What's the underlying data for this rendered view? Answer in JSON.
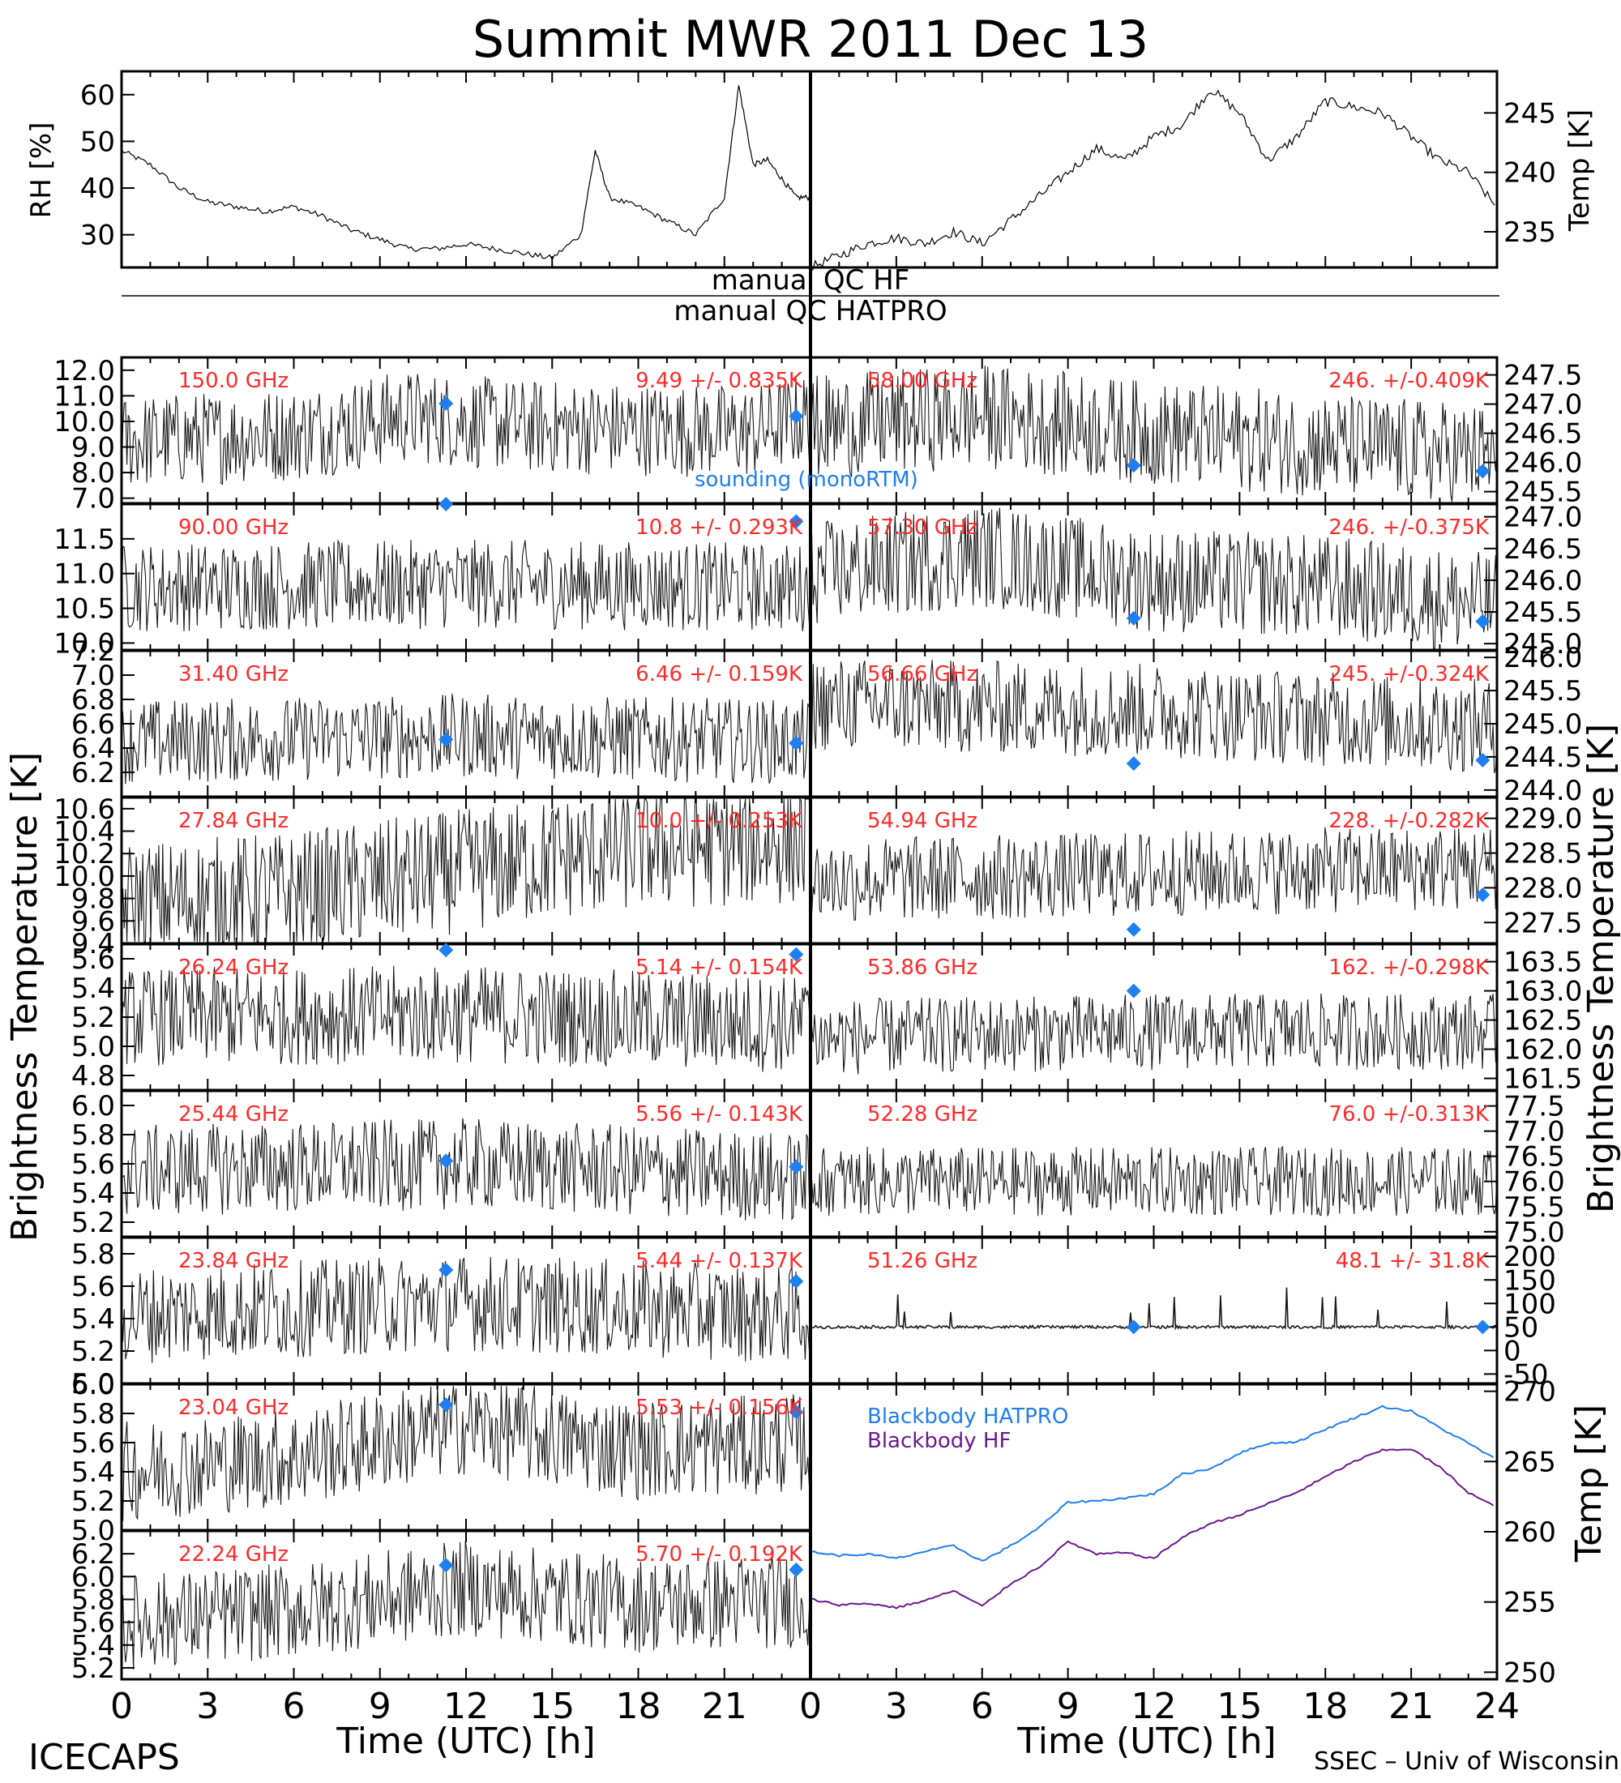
{
  "title": "Summit MWR 2011 Dec 13",
  "footer_left": "ICECAPS",
  "footer_right": "SSEC – Univ of Wisconsin",
  "xlabel": "Time (UTC) [h]",
  "qc": {
    "hf": "manual QC HF",
    "hatpro": "manual QC HATPRO"
  },
  "left_axis_label": "Brightness Temperature [K]",
  "right_axis_label": "Brightness Temperature [K]",
  "legend_sounding": "sounding (monoRTM)",
  "colors": {
    "sounding": "#1e7ff0",
    "annotation": "#ff2a2a",
    "bb_hatpro": "#1e7ff0",
    "bb_hf": "#6a1a8f"
  },
  "chart_data": [
    {
      "type": "line",
      "panel": "met-rh",
      "xlim": [
        0,
        24
      ],
      "ylim": [
        23,
        65
      ],
      "ylabel": "RH [%]",
      "yticks": [
        30,
        40,
        50,
        60
      ],
      "x": [
        0,
        1,
        2,
        3,
        4,
        5,
        6,
        7,
        8,
        9,
        10,
        11,
        12,
        13,
        14,
        15,
        16,
        16.5,
        17,
        18,
        19,
        20,
        21,
        21.5,
        22,
        22.5,
        23,
        23.5,
        24
      ],
      "values": [
        48,
        45,
        40,
        37,
        36,
        35,
        36,
        34,
        31,
        29,
        27,
        27,
        28,
        27,
        26,
        25,
        30,
        48,
        38,
        36,
        33,
        30,
        38,
        62,
        45,
        46,
        42,
        38,
        38
      ]
    },
    {
      "type": "line",
      "panel": "met-temp",
      "xlim": [
        0,
        24
      ],
      "ylim": [
        232,
        248.5
      ],
      "ylabel": "Temp [K]",
      "yticks": [
        235,
        240,
        245
      ],
      "x": [
        0,
        1,
        2,
        3,
        4,
        5,
        6,
        7,
        8,
        9,
        10,
        11,
        12,
        13,
        14,
        15,
        16,
        17,
        18,
        19,
        20,
        21,
        22,
        23,
        24
      ],
      "values": [
        232,
        233,
        234,
        234.5,
        234,
        235,
        234,
        236,
        238,
        240,
        242,
        241,
        243,
        244,
        247,
        245,
        241,
        243,
        246,
        245.5,
        245,
        243,
        241,
        240,
        237
      ]
    },
    {
      "type": "scatter",
      "side": "left",
      "freq_label": "150.0 GHz",
      "stats": "9.49 +/- 0.835K",
      "mean": 9.49,
      "sd": 0.835,
      "ylim": [
        6.8,
        12.5
      ],
      "yticks": [
        7,
        8,
        9,
        10,
        11,
        12
      ],
      "trend": [
        [
          0,
          9.2
        ],
        [
          6,
          9.5
        ],
        [
          10,
          10.2
        ],
        [
          14,
          9.8
        ],
        [
          18,
          9.7
        ],
        [
          22,
          9.6
        ],
        [
          24,
          10.2
        ]
      ],
      "sounding": [
        [
          11.3,
          10.7
        ],
        [
          23.5,
          10.2
        ]
      ]
    },
    {
      "type": "scatter",
      "side": "left",
      "freq_label": "90.00 GHz",
      "stats": "10.8 +/- 0.293K",
      "mean": 10.8,
      "sd": 0.293,
      "ylim": [
        9.9,
        12.0
      ],
      "yticks": [
        10.0,
        10.5,
        11.0,
        11.5
      ],
      "trend": [
        [
          0,
          10.8
        ],
        [
          12,
          10.85
        ],
        [
          24,
          10.8
        ]
      ],
      "sounding": [
        [
          11.3,
          12.0
        ],
        [
          23.5,
          11.75
        ]
      ]
    },
    {
      "type": "scatter",
      "side": "left",
      "freq_label": "31.40 GHz",
      "stats": "6.46 +/- 0.159K",
      "mean": 6.46,
      "sd": 0.159,
      "ylim": [
        6.0,
        7.2
      ],
      "yticks": [
        6.2,
        6.4,
        6.6,
        6.8,
        7.0,
        7.2
      ],
      "trend": [
        [
          0,
          6.45
        ],
        [
          12,
          6.5
        ],
        [
          24,
          6.45
        ]
      ],
      "sounding": [
        [
          11.3,
          6.47
        ],
        [
          23.5,
          6.44
        ]
      ]
    },
    {
      "type": "scatter",
      "side": "left",
      "freq_label": "27.84 GHz",
      "stats": "10.0 +/- 0.253K",
      "mean": 10.0,
      "sd": 0.253,
      "ylim": [
        9.4,
        10.7
      ],
      "yticks": [
        9.4,
        9.6,
        9.8,
        10.0,
        10.2,
        10.4,
        10.6
      ],
      "trend": [
        [
          0,
          9.75
        ],
        [
          6,
          9.85
        ],
        [
          12,
          10.05
        ],
        [
          18,
          10.25
        ],
        [
          24,
          10.3
        ]
      ],
      "sounding": []
    },
    {
      "type": "scatter",
      "side": "left",
      "freq_label": "26.24 GHz",
      "stats": "5.14 +/- 0.154K",
      "mean": 5.14,
      "sd": 0.154,
      "ylim": [
        4.7,
        5.7
      ],
      "yticks": [
        4.8,
        5.0,
        5.2,
        5.4,
        5.6
      ],
      "trend": [
        [
          0,
          5.2
        ],
        [
          12,
          5.22
        ],
        [
          24,
          5.15
        ]
      ],
      "sounding": [
        [
          11.3,
          5.66
        ],
        [
          23.5,
          5.63
        ]
      ]
    },
    {
      "type": "scatter",
      "side": "left",
      "freq_label": "25.44 GHz",
      "stats": "5.56 +/- 0.143K",
      "mean": 5.56,
      "sd": 0.143,
      "ylim": [
        5.1,
        6.1
      ],
      "yticks": [
        5.2,
        5.4,
        5.6,
        5.8,
        6.0
      ],
      "trend": [
        [
          0,
          5.55
        ],
        [
          12,
          5.6
        ],
        [
          24,
          5.5
        ]
      ],
      "sounding": [
        [
          11.3,
          5.62
        ],
        [
          23.5,
          5.58
        ]
      ]
    },
    {
      "type": "scatter",
      "side": "left",
      "freq_label": "23.84 GHz",
      "stats": "5.44 +/- 0.137K",
      "mean": 5.44,
      "sd": 0.137,
      "ylim": [
        5.0,
        5.9
      ],
      "yticks": [
        5.0,
        5.2,
        5.4,
        5.6,
        5.8
      ],
      "trend": [
        [
          0,
          5.42
        ],
        [
          12,
          5.5
        ],
        [
          24,
          5.42
        ]
      ],
      "sounding": [
        [
          11.3,
          5.7
        ],
        [
          23.5,
          5.63
        ]
      ]
    },
    {
      "type": "scatter",
      "side": "left",
      "freq_label": "23.04 GHz",
      "stats": "5.53 +/- 0.156K",
      "mean": 5.53,
      "sd": 0.156,
      "ylim": [
        5.0,
        6.0
      ],
      "yticks": [
        5.0,
        5.2,
        5.4,
        5.6,
        5.8,
        6.0
      ],
      "trend": [
        [
          0,
          5.4
        ],
        [
          6,
          5.5
        ],
        [
          12,
          5.72
        ],
        [
          18,
          5.55
        ],
        [
          24,
          5.6
        ]
      ],
      "sounding": [
        [
          11.3,
          5.86
        ],
        [
          23.5,
          5.81
        ]
      ]
    },
    {
      "type": "scatter",
      "side": "left",
      "freq_label": "22.24 GHz",
      "stats": "5.70 +/- 0.192K",
      "mean": 5.7,
      "sd": 0.192,
      "ylim": [
        5.1,
        6.4
      ],
      "yticks": [
        5.2,
        5.4,
        5.6,
        5.8,
        6.0,
        6.2
      ],
      "trend": [
        [
          0,
          5.6
        ],
        [
          6,
          5.7
        ],
        [
          12,
          5.9
        ],
        [
          18,
          5.75
        ],
        [
          24,
          5.8
        ]
      ],
      "sounding": [
        [
          11.3,
          6.1
        ],
        [
          23.5,
          6.06
        ]
      ]
    },
    {
      "type": "scatter",
      "side": "right",
      "freq_label": "58.00 GHz",
      "stats": "246. +/-0.409K",
      "mean": 246.5,
      "sd": 0.409,
      "ylim": [
        245.3,
        247.8
      ],
      "yticks": [
        245.5,
        246.0,
        246.5,
        247.0,
        247.5
      ],
      "trend": [
        [
          0,
          246.6
        ],
        [
          6,
          246.8
        ],
        [
          12,
          246.5
        ],
        [
          18,
          246.3
        ],
        [
          24,
          246.1
        ]
      ],
      "sounding": [
        [
          11.3,
          245.95
        ],
        [
          23.5,
          245.85
        ]
      ]
    },
    {
      "type": "scatter",
      "side": "right",
      "freq_label": "57.30 GHz",
      "stats": "246. +/-0.375K",
      "mean": 246.0,
      "sd": 0.375,
      "ylim": [
        244.9,
        247.2
      ],
      "yticks": [
        245.0,
        245.5,
        246.0,
        246.5,
        247.0
      ],
      "trend": [
        [
          0,
          246.1
        ],
        [
          6,
          246.4
        ],
        [
          12,
          246.0
        ],
        [
          18,
          245.9
        ],
        [
          24,
          245.6
        ]
      ],
      "sounding": [
        [
          11.3,
          245.4
        ],
        [
          23.5,
          245.35
        ]
      ]
    },
    {
      "type": "scatter",
      "side": "right",
      "freq_label": "56.66 GHz",
      "stats": "245. +/-0.324K",
      "mean": 245.2,
      "sd": 0.324,
      "ylim": [
        243.9,
        246.1
      ],
      "yticks": [
        244.0,
        244.5,
        245.0,
        245.5,
        246.0
      ],
      "trend": [
        [
          0,
          245.3
        ],
        [
          12,
          245.2
        ],
        [
          24,
          244.95
        ]
      ],
      "sounding": [
        [
          11.3,
          244.4
        ],
        [
          23.5,
          244.45
        ]
      ]
    },
    {
      "type": "scatter",
      "side": "right",
      "freq_label": "54.94 GHz",
      "stats": "228. +/-0.282K",
      "mean": 228.2,
      "sd": 0.282,
      "ylim": [
        227.2,
        229.3
      ],
      "yticks": [
        227.5,
        228.0,
        228.5,
        229.0
      ],
      "trend": [
        [
          0,
          228.1
        ],
        [
          12,
          228.2
        ],
        [
          24,
          228.3
        ]
      ],
      "sounding": [
        [
          11.3,
          227.4
        ],
        [
          23.5,
          227.9
        ]
      ]
    },
    {
      "type": "scatter",
      "side": "right",
      "freq_label": "53.86 GHz",
      "stats": "162. +/-0.298K",
      "mean": 162.2,
      "sd": 0.298,
      "ylim": [
        161.3,
        163.8
      ],
      "yticks": [
        161.5,
        162.0,
        162.5,
        163.0,
        163.5
      ],
      "trend": [
        [
          0,
          162.2
        ],
        [
          12,
          162.3
        ],
        [
          24,
          162.3
        ]
      ],
      "sounding": [
        [
          11.3,
          163.0
        ]
      ]
    },
    {
      "type": "scatter",
      "side": "right",
      "freq_label": "52.28 GHz",
      "stats": "76.0 +/-0.313K",
      "mean": 76.0,
      "sd": 0.313,
      "ylim": [
        74.9,
        77.8
      ],
      "yticks": [
        75.0,
        75.5,
        76.0,
        76.5,
        77.0,
        77.5
      ],
      "trend": [
        [
          0,
          76.0
        ],
        [
          12,
          76.0
        ],
        [
          24,
          76.0
        ]
      ],
      "sounding": []
    },
    {
      "type": "scatter",
      "side": "right",
      "freq_label": "51.26 GHz",
      "stats": "48.1 +/- 31.8K",
      "mean": 48.1,
      "sd": 31.8,
      "ylim": [
        -70,
        240
      ],
      "yticks": [
        -50,
        0,
        50,
        100,
        150,
        200
      ],
      "trend": [
        [
          0,
          50
        ],
        [
          24,
          50
        ]
      ],
      "sounding": [
        [
          11.3,
          50
        ],
        [
          23.5,
          50
        ]
      ]
    },
    {
      "type": "line",
      "panel": "blackbody",
      "xlim": [
        0,
        24
      ],
      "ylim": [
        249.5,
        270.5
      ],
      "ylabel": "Temp [K]",
      "yticks": [
        250,
        255,
        260,
        265,
        270
      ],
      "x": [
        0,
        1,
        2,
        3,
        4,
        5,
        6,
        7,
        8,
        9,
        10,
        11,
        12,
        13,
        14,
        15,
        16,
        17,
        18,
        19,
        20,
        21,
        22,
        23,
        24
      ],
      "series": [
        {
          "name": "Blackbody HATPRO",
          "values": [
            258.6,
            258.3,
            258.4,
            258.1,
            258.6,
            259.0,
            257.9,
            259.0,
            260.3,
            262.1,
            262.2,
            262.4,
            262.7,
            264.1,
            264.5,
            265.6,
            266.3,
            266.4,
            267.3,
            268.1,
            268.9,
            268.6,
            267.4,
            266.3,
            265.1
          ]
        },
        {
          "name": "Blackbody HF",
          "values": [
            255.2,
            254.8,
            254.9,
            254.6,
            255.1,
            255.8,
            254.7,
            256.3,
            257.5,
            259.3,
            258.4,
            258.5,
            258.1,
            259.6,
            260.6,
            261.2,
            262.0,
            262.8,
            263.9,
            265.0,
            265.8,
            265.9,
            264.6,
            262.8,
            261.7
          ]
        }
      ]
    }
  ]
}
